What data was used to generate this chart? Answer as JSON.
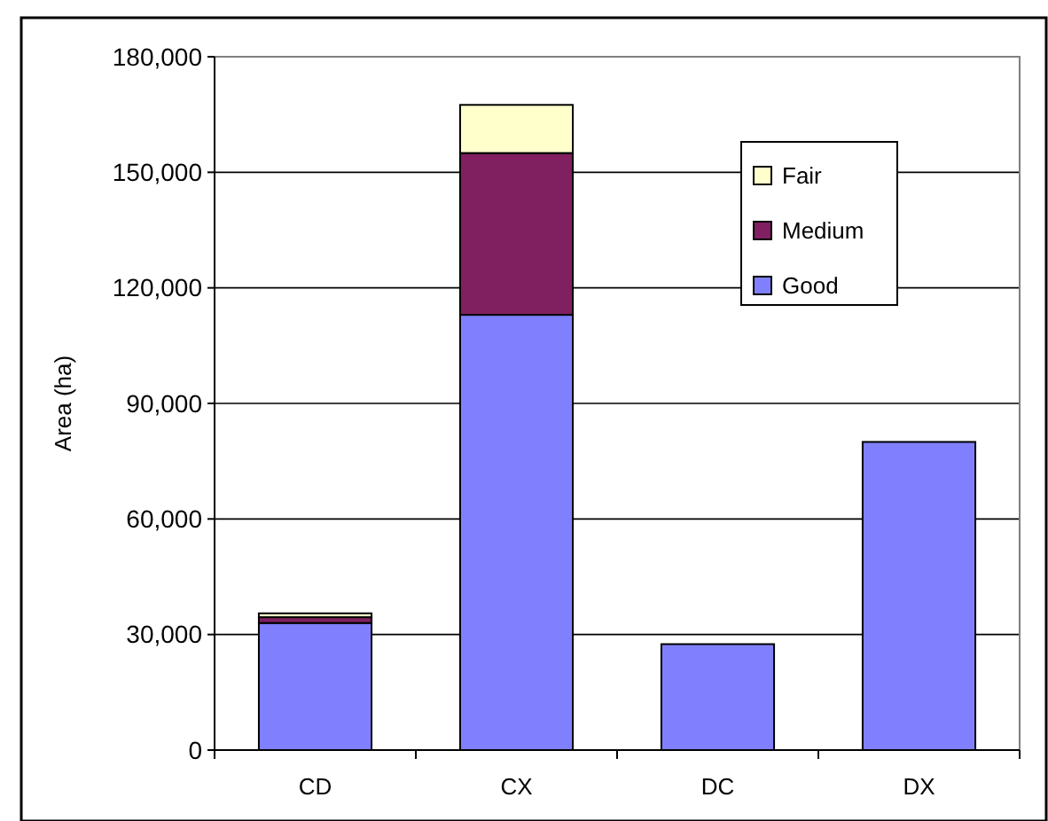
{
  "chart_data": {
    "type": "bar",
    "stacked": true,
    "ylabel": "Area (ha)",
    "categories": [
      "CD",
      "CX",
      "DC",
      "DX"
    ],
    "series": [
      {
        "name": "Good",
        "color": "#8080ff",
        "values": [
          33000,
          113000,
          27500,
          80000
        ]
      },
      {
        "name": "Medium",
        "color": "#802060",
        "values": [
          1500,
          42000,
          0,
          0
        ]
      },
      {
        "name": "Fair",
        "color": "#ffffcc",
        "values": [
          1000,
          12500,
          0,
          0
        ]
      }
    ],
    "ylim": [
      0,
      180000
    ],
    "yticks": [
      {
        "value": 0,
        "label": "0"
      },
      {
        "value": 30000,
        "label": "30,000"
      },
      {
        "value": 60000,
        "label": "60,000"
      },
      {
        "value": 90000,
        "label": "90,000"
      },
      {
        "value": 120000,
        "label": "120,000"
      },
      {
        "value": 150000,
        "label": "150,000"
      },
      {
        "value": 180000,
        "label": "180,000"
      }
    ],
    "grid": "y",
    "legend": "top right"
  }
}
